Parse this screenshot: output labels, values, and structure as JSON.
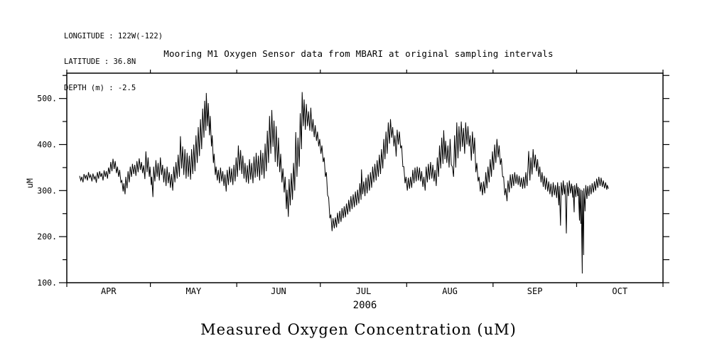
{
  "header": {
    "lines": [
      "LONGITUDE : 122W(-122)",
      "LATITUDE : 36.8N",
      "DEPTH (m) : -2.5"
    ]
  },
  "title": "Mooring M1 Oxygen Sensor data from MBARI at original sampling intervals",
  "caption": "Measured Oxygen Concentration (uM)",
  "year_label": "2006",
  "colors": {
    "line": "#000000",
    "background": "#ffffff",
    "axis": "#000000"
  },
  "chart_data": {
    "type": "line",
    "title": "Mooring M1 Oxygen Sensor data from MBARI at original sampling intervals",
    "xlabel": "2006",
    "ylabel": "uM",
    "series_name": "Measured Oxygen Concentration (uM)",
    "x_unit": "days since Apr 1 2006",
    "x_domain": [
      0,
      214
    ],
    "y_domain": [
      100,
      555
    ],
    "grid": false,
    "legend": "none",
    "month_boundaries_day": [
      0,
      30,
      61,
      91,
      122,
      153,
      183,
      214
    ],
    "x_labels": [
      {
        "day": 15,
        "label": "APR"
      },
      {
        "day": 45.5,
        "label": "MAY"
      },
      {
        "day": 76,
        "label": "JUN"
      },
      {
        "day": 106.5,
        "label": "JUL"
      },
      {
        "day": 137.5,
        "label": "AUG"
      },
      {
        "day": 168,
        "label": "SEP"
      },
      {
        "day": 198.5,
        "label": "OCT"
      }
    ],
    "y_major": [
      {
        "value": 100,
        "label": "100."
      },
      {
        "value": 200,
        "label": "200."
      },
      {
        "value": 300,
        "label": "300."
      },
      {
        "value": 400,
        "label": "400."
      },
      {
        "value": 500,
        "label": "500."
      }
    ],
    "y_minor": [
      150,
      250,
      350,
      450,
      550
    ],
    "y_right_ticks": [
      100,
      150,
      200,
      250,
      300,
      350,
      400,
      450,
      500,
      550
    ],
    "points_day_hi_lo": [
      [
        4.8,
        332,
        322
      ],
      [
        5.6,
        330,
        318
      ],
      [
        6.4,
        336,
        326
      ],
      [
        7.2,
        334,
        322
      ],
      [
        8.0,
        340,
        328
      ],
      [
        8.8,
        334,
        320
      ],
      [
        9.6,
        337,
        325
      ],
      [
        10.4,
        331,
        317
      ],
      [
        11.2,
        340,
        326
      ],
      [
        12.0,
        342,
        330
      ],
      [
        12.8,
        338,
        322
      ],
      [
        13.6,
        344,
        330
      ],
      [
        14.4,
        342,
        326
      ],
      [
        15.2,
        350,
        336
      ],
      [
        16.0,
        362,
        342
      ],
      [
        16.8,
        369,
        347
      ],
      [
        17.6,
        364,
        338
      ],
      [
        18.4,
        352,
        330
      ],
      [
        19.2,
        345,
        318
      ],
      [
        20.0,
        322,
        298
      ],
      [
        20.7,
        316,
        292
      ],
      [
        21.4,
        330,
        305
      ],
      [
        22.2,
        342,
        318
      ],
      [
        23.0,
        352,
        330
      ],
      [
        23.8,
        358,
        336
      ],
      [
        24.6,
        356,
        332
      ],
      [
        25.4,
        364,
        340
      ],
      [
        26.2,
        370,
        345
      ],
      [
        27.0,
        362,
        338
      ],
      [
        27.8,
        355,
        325
      ],
      [
        28.6,
        385,
        340
      ],
      [
        29.4,
        372,
        330
      ],
      [
        30.1,
        352,
        312
      ],
      [
        30.7,
        330,
        286
      ],
      [
        31.4,
        352,
        320
      ],
      [
        32.2,
        366,
        330
      ],
      [
        33.0,
        360,
        322
      ],
      [
        33.8,
        372,
        334
      ],
      [
        34.6,
        356,
        318
      ],
      [
        35.4,
        348,
        310
      ],
      [
        36.2,
        352,
        316
      ],
      [
        37.0,
        340,
        306
      ],
      [
        37.8,
        336,
        300
      ],
      [
        38.6,
        352,
        318
      ],
      [
        39.4,
        362,
        326
      ],
      [
        40.2,
        378,
        330
      ],
      [
        41.0,
        418,
        348
      ],
      [
        41.8,
        396,
        334
      ],
      [
        42.6,
        390,
        326
      ],
      [
        43.4,
        382,
        330
      ],
      [
        44.2,
        376,
        324
      ],
      [
        45.0,
        390,
        336
      ],
      [
        45.8,
        400,
        342
      ],
      [
        46.6,
        420,
        360
      ],
      [
        47.4,
        438,
        375
      ],
      [
        48.2,
        455,
        390
      ],
      [
        49.0,
        478,
        415
      ],
      [
        49.7,
        495,
        430
      ],
      [
        50.3,
        512,
        440
      ],
      [
        51.0,
        490,
        420
      ],
      [
        51.7,
        462,
        396
      ],
      [
        52.4,
        420,
        360
      ],
      [
        53.1,
        380,
        334
      ],
      [
        53.8,
        352,
        322
      ],
      [
        54.6,
        345,
        316
      ],
      [
        55.4,
        350,
        320
      ],
      [
        56.2,
        342,
        310
      ],
      [
        57.0,
        335,
        298
      ],
      [
        57.8,
        345,
        312
      ],
      [
        58.6,
        352,
        318
      ],
      [
        59.4,
        348,
        312
      ],
      [
        60.2,
        356,
        320
      ],
      [
        61.0,
        372,
        330
      ],
      [
        61.8,
        398,
        344
      ],
      [
        62.6,
        388,
        336
      ],
      [
        63.4,
        376,
        326
      ],
      [
        64.2,
        360,
        318
      ],
      [
        65.0,
        355,
        315
      ],
      [
        65.8,
        368,
        324
      ],
      [
        66.6,
        360,
        316
      ],
      [
        67.4,
        374,
        328
      ],
      [
        68.2,
        382,
        330
      ],
      [
        69.0,
        376,
        322
      ],
      [
        69.8,
        388,
        334
      ],
      [
        70.6,
        382,
        326
      ],
      [
        71.4,
        402,
        342
      ],
      [
        72.2,
        430,
        360
      ],
      [
        73.0,
        462,
        380
      ],
      [
        73.8,
        475,
        395
      ],
      [
        74.6,
        452,
        362
      ],
      [
        75.4,
        440,
        352
      ],
      [
        76.2,
        415,
        340
      ],
      [
        77.0,
        380,
        318
      ],
      [
        77.8,
        348,
        296
      ],
      [
        78.6,
        330,
        260
      ],
      [
        79.3,
        302,
        243
      ],
      [
        80.0,
        325,
        268
      ],
      [
        80.8,
        338,
        280
      ],
      [
        81.6,
        360,
        300
      ],
      [
        82.4,
        427,
        330
      ],
      [
        83.2,
        415,
        352
      ],
      [
        84.0,
        468,
        390
      ],
      [
        84.7,
        514,
        440
      ],
      [
        85.4,
        498,
        432
      ],
      [
        86.2,
        488,
        440
      ],
      [
        87.0,
        472,
        430
      ],
      [
        87.8,
        480,
        428
      ],
      [
        88.6,
        455,
        416
      ],
      [
        89.4,
        442,
        408
      ],
      [
        90.2,
        428,
        396
      ],
      [
        91.0,
        412,
        380
      ],
      [
        91.8,
        398,
        362
      ],
      [
        92.6,
        372,
        330
      ],
      [
        93.4,
        340,
        290
      ],
      [
        94.2,
        285,
        240
      ],
      [
        95.0,
        248,
        212
      ],
      [
        95.8,
        240,
        218
      ],
      [
        96.6,
        242,
        220
      ],
      [
        97.4,
        252,
        228
      ],
      [
        98.2,
        256,
        232
      ],
      [
        99.0,
        262,
        240
      ],
      [
        99.8,
        266,
        242
      ],
      [
        100.6,
        272,
        248
      ],
      [
        101.4,
        280,
        254
      ],
      [
        102.2,
        288,
        260
      ],
      [
        103.0,
        292,
        264
      ],
      [
        103.8,
        298,
        268
      ],
      [
        104.6,
        302,
        272
      ],
      [
        105.4,
        316,
        280
      ],
      [
        106.0,
        346,
        292
      ],
      [
        106.8,
        320,
        288
      ],
      [
        107.6,
        328,
        294
      ],
      [
        108.4,
        335,
        300
      ],
      [
        109.2,
        340,
        306
      ],
      [
        110.0,
        352,
        318
      ],
      [
        110.8,
        358,
        322
      ],
      [
        111.6,
        366,
        330
      ],
      [
        112.4,
        378,
        336
      ],
      [
        113.2,
        390,
        348
      ],
      [
        114.0,
        412,
        368
      ],
      [
        114.8,
        428,
        380
      ],
      [
        115.6,
        448,
        402
      ],
      [
        116.4,
        455,
        415
      ],
      [
        117.2,
        438,
        396
      ],
      [
        118.0,
        420,
        374
      ],
      [
        118.8,
        432,
        400
      ],
      [
        119.6,
        428,
        392
      ],
      [
        120.4,
        398,
        352
      ],
      [
        121.2,
        352,
        316
      ],
      [
        122.0,
        330,
        300
      ],
      [
        122.8,
        328,
        304
      ],
      [
        123.6,
        330,
        306
      ],
      [
        124.4,
        345,
        316
      ],
      [
        125.2,
        350,
        320
      ],
      [
        126.0,
        352,
        322
      ],
      [
        126.8,
        350,
        320
      ],
      [
        127.6,
        342,
        308
      ],
      [
        128.4,
        330,
        300
      ],
      [
        129.2,
        352,
        318
      ],
      [
        130.0,
        358,
        324
      ],
      [
        130.8,
        362,
        326
      ],
      [
        131.6,
        356,
        320
      ],
      [
        132.4,
        345,
        310
      ],
      [
        133.2,
        372,
        330
      ],
      [
        134.0,
        398,
        348
      ],
      [
        134.8,
        415,
        358
      ],
      [
        135.5,
        431,
        368
      ],
      [
        136.2,
        408,
        360
      ],
      [
        137.0,
        398,
        350
      ],
      [
        137.8,
        412,
        356
      ],
      [
        138.6,
        352,
        330
      ],
      [
        139.4,
        420,
        350
      ],
      [
        140.2,
        448,
        370
      ],
      [
        141.0,
        440,
        385
      ],
      [
        141.8,
        450,
        395
      ],
      [
        142.6,
        436,
        380
      ],
      [
        143.4,
        448,
        400
      ],
      [
        144.2,
        440,
        396
      ],
      [
        145.0,
        420,
        365
      ],
      [
        145.8,
        428,
        380
      ],
      [
        146.6,
        415,
        340
      ],
      [
        147.4,
        360,
        320
      ],
      [
        148.2,
        330,
        298
      ],
      [
        149.0,
        318,
        290
      ],
      [
        149.8,
        320,
        294
      ],
      [
        150.6,
        340,
        305
      ],
      [
        151.4,
        352,
        318
      ],
      [
        152.2,
        368,
        330
      ],
      [
        153.0,
        385,
        345
      ],
      [
        153.8,
        400,
        360
      ],
      [
        154.6,
        412,
        372
      ],
      [
        155.4,
        398,
        356
      ],
      [
        156.2,
        370,
        330
      ],
      [
        157.0,
        330,
        290
      ],
      [
        157.8,
        305,
        277
      ],
      [
        158.6,
        322,
        296
      ],
      [
        159.4,
        335,
        305
      ],
      [
        160.2,
        336,
        310
      ],
      [
        161.0,
        340,
        315
      ],
      [
        161.8,
        335,
        312
      ],
      [
        162.6,
        332,
        308
      ],
      [
        163.4,
        328,
        304
      ],
      [
        164.2,
        330,
        305
      ],
      [
        165.0,
        340,
        310
      ],
      [
        166.0,
        386,
        322
      ],
      [
        166.8,
        372,
        335
      ],
      [
        167.6,
        390,
        350
      ],
      [
        168.4,
        378,
        342
      ],
      [
        169.2,
        368,
        330
      ],
      [
        170.0,
        352,
        318
      ],
      [
        170.8,
        340,
        308
      ],
      [
        171.6,
        332,
        302
      ],
      [
        172.4,
        328,
        298
      ],
      [
        173.2,
        320,
        292
      ],
      [
        174.0,
        315,
        286
      ],
      [
        174.8,
        318,
        290
      ],
      [
        175.6,
        312,
        284
      ],
      [
        176.4,
        318,
        268
      ],
      [
        177.0,
        310,
        224
      ],
      [
        177.7,
        318,
        290
      ],
      [
        178.4,
        322,
        292
      ],
      [
        179.1,
        312,
        207
      ],
      [
        179.8,
        318,
        288
      ],
      [
        180.6,
        322,
        294
      ],
      [
        181.4,
        315,
        285
      ],
      [
        181.9,
        310,
        253
      ],
      [
        182.5,
        312,
        286
      ],
      [
        183.2,
        316,
        288
      ],
      [
        183.8,
        308,
        235
      ],
      [
        184.3,
        305,
        228
      ],
      [
        184.8,
        302,
        120
      ],
      [
        185.3,
        300,
        160
      ],
      [
        185.8,
        305,
        255
      ],
      [
        186.5,
        312,
        282
      ],
      [
        187.2,
        310,
        288
      ],
      [
        188.0,
        312,
        292
      ],
      [
        188.8,
        316,
        296
      ],
      [
        189.6,
        320,
        300
      ],
      [
        190.4,
        326,
        306
      ],
      [
        191.2,
        330,
        310
      ],
      [
        192.0,
        328,
        308
      ],
      [
        192.8,
        322,
        305
      ],
      [
        193.6,
        318,
        302
      ],
      [
        194.2,
        312,
        304
      ]
    ]
  }
}
